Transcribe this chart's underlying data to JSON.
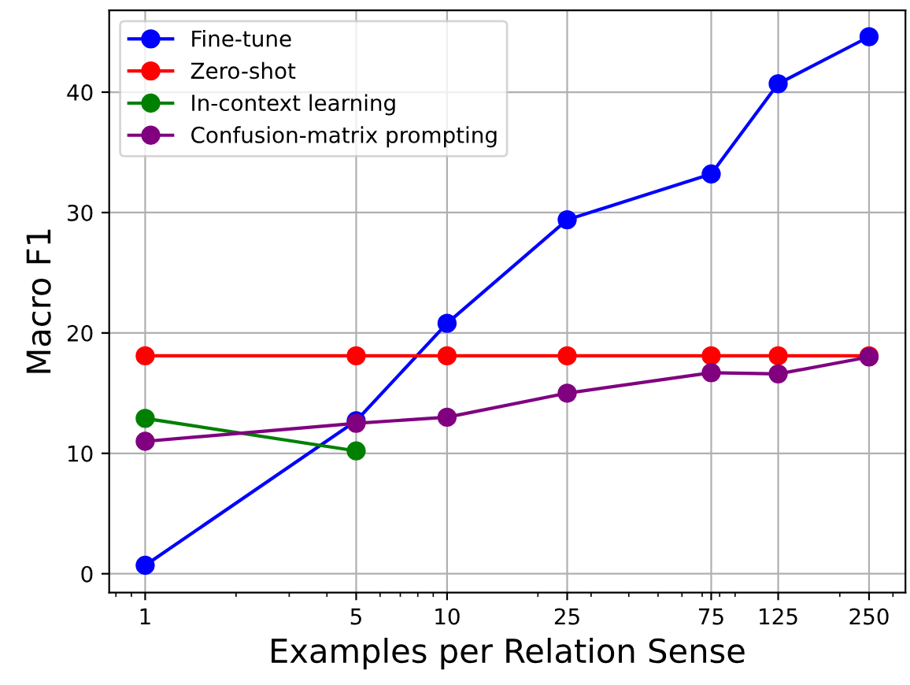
{
  "chart_data": {
    "type": "line",
    "xlabel": "Examples per Relation Sense",
    "ylabel": "Macro F1",
    "x": [
      1,
      5,
      10,
      25,
      75,
      125,
      250
    ],
    "series": [
      {
        "name": "Fine-tune",
        "color": "#0000ff",
        "values": [
          0.7,
          12.7,
          20.8,
          29.4,
          33.2,
          40.7,
          44.6
        ]
      },
      {
        "name": "Zero-shot",
        "color": "#ff0000",
        "values": [
          18.1,
          18.1,
          18.1,
          18.1,
          18.1,
          18.1,
          18.1
        ]
      },
      {
        "name": "In-context learning",
        "color": "#008000",
        "values": [
          12.9,
          10.2,
          null,
          null,
          null,
          null,
          null
        ]
      },
      {
        "name": "Confusion-matrix prompting",
        "color": "#800080",
        "values": [
          11.0,
          12.5,
          13.0,
          15.0,
          16.7,
          16.6,
          18.0
        ]
      }
    ],
    "log": "x",
    "xlim": [
      0.76,
      330
    ],
    "xticks": [
      1,
      5,
      10,
      25,
      75,
      125,
      250
    ],
    "ylim": [
      -1.56,
      46.8
    ],
    "yticks": [
      0,
      10,
      20,
      30,
      40
    ],
    "grid": true,
    "legend": "top left",
    "marker": "circle",
    "line_style": "solid"
  }
}
